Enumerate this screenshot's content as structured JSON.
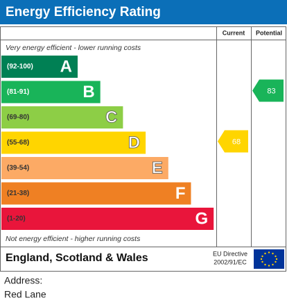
{
  "header": {
    "title": "Energy Efficiency Rating"
  },
  "columns": [
    "Current",
    "Potential"
  ],
  "top_note": "Very energy efficient - lower running costs",
  "bottom_note": "Not energy efficient - higher running costs",
  "bands": [
    {
      "range": "(92-100)",
      "letter": "A",
      "color": "#008054"
    },
    {
      "range": "(81-91)",
      "letter": "B",
      "color": "#19b459"
    },
    {
      "range": "(69-80)",
      "letter": "C",
      "color": "#8dce46"
    },
    {
      "range": "(55-68)",
      "letter": "D",
      "color": "#ffd500"
    },
    {
      "range": "(39-54)",
      "letter": "E",
      "color": "#fcaa65"
    },
    {
      "range": "(21-38)",
      "letter": "F",
      "color": "#ef8023"
    },
    {
      "range": "(1-20)",
      "letter": "G",
      "color": "#e9153b"
    }
  ],
  "current": 68,
  "potential": 83,
  "footer": {
    "region": "England, Scotland & Wales",
    "directive": [
      "EU Directive",
      "2002/91/EC"
    ]
  },
  "address": {
    "label": "Address:",
    "value": "Red Lane"
  }
}
